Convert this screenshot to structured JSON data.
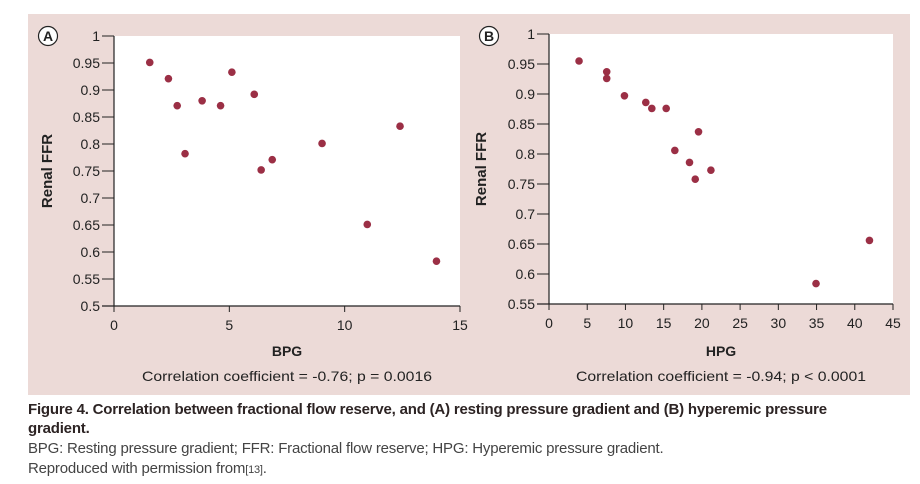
{
  "colors": {
    "panel_bg": "#ecdad7",
    "marker": "#9b2f45",
    "axis": "#222222"
  },
  "chart_data": [
    {
      "type": "scatter",
      "panel_label": "A",
      "xlabel": "BPG",
      "ylabel": "Renal FFR",
      "xlim": [
        0,
        15
      ],
      "ylim": [
        0.5,
        1
      ],
      "xticks": [
        "0",
        "5",
        "10",
        "15"
      ],
      "yticks": [
        "0.5",
        "0.55",
        "0.6",
        "0.65",
        "0.7",
        "0.75",
        "0.8",
        "0.85",
        "0.9",
        "0.95",
        "1"
      ],
      "grid": false,
      "annotation": "Correlation coefficient = -0.76; p = 0.0016",
      "points": [
        {
          "x": 1.55,
          "y": 0.951
        },
        {
          "x": 2.36,
          "y": 0.921
        },
        {
          "x": 2.74,
          "y": 0.871
        },
        {
          "x": 3.08,
          "y": 0.782
        },
        {
          "x": 3.82,
          "y": 0.88
        },
        {
          "x": 4.62,
          "y": 0.871
        },
        {
          "x": 5.11,
          "y": 0.933
        },
        {
          "x": 6.08,
          "y": 0.892
        },
        {
          "x": 6.38,
          "y": 0.752
        },
        {
          "x": 6.86,
          "y": 0.771
        },
        {
          "x": 9.02,
          "y": 0.801
        },
        {
          "x": 10.98,
          "y": 0.651
        },
        {
          "x": 12.4,
          "y": 0.833
        },
        {
          "x": 13.98,
          "y": 0.583
        }
      ]
    },
    {
      "type": "scatter",
      "panel_label": "B",
      "xlabel": "HPG",
      "ylabel": "Renal FFR",
      "xlim": [
        0,
        45
      ],
      "ylim": [
        0.55,
        1
      ],
      "xticks": [
        "0",
        "5",
        "10",
        "15",
        "20",
        "25",
        "30",
        "35",
        "40",
        "45"
      ],
      "yticks": [
        "0.55",
        "0.6",
        "0.65",
        "0.7",
        "0.75",
        "0.8",
        "0.85",
        "0.9",
        "0.95",
        "1"
      ],
      "grid": false,
      "annotation": "Correlation coefficient = -0.94; p < 0.0001",
      "points": [
        {
          "x": 3.93,
          "y": 0.955
        },
        {
          "x": 7.55,
          "y": 0.937
        },
        {
          "x": 7.55,
          "y": 0.926
        },
        {
          "x": 9.87,
          "y": 0.897
        },
        {
          "x": 12.66,
          "y": 0.886
        },
        {
          "x": 13.45,
          "y": 0.876
        },
        {
          "x": 15.33,
          "y": 0.876
        },
        {
          "x": 19.56,
          "y": 0.837
        },
        {
          "x": 16.46,
          "y": 0.806
        },
        {
          "x": 18.38,
          "y": 0.786
        },
        {
          "x": 21.18,
          "y": 0.773
        },
        {
          "x": 19.13,
          "y": 0.758
        },
        {
          "x": 34.93,
          "y": 0.584
        },
        {
          "x": 41.92,
          "y": 0.656
        }
      ]
    }
  ],
  "caption": {
    "title": "Figure 4. Correlation between fractional flow reserve, and (A) resting pressure gradient and (B) hyperemic pressure gradient.",
    "abbreviations": "BPG: Resting pressure gradient; FFR: Fractional flow reserve; HPG: Hyperemic pressure gradient.",
    "permission": "Reproduced with permission from",
    "reference": "[13]",
    "reference_suffix": "."
  }
}
